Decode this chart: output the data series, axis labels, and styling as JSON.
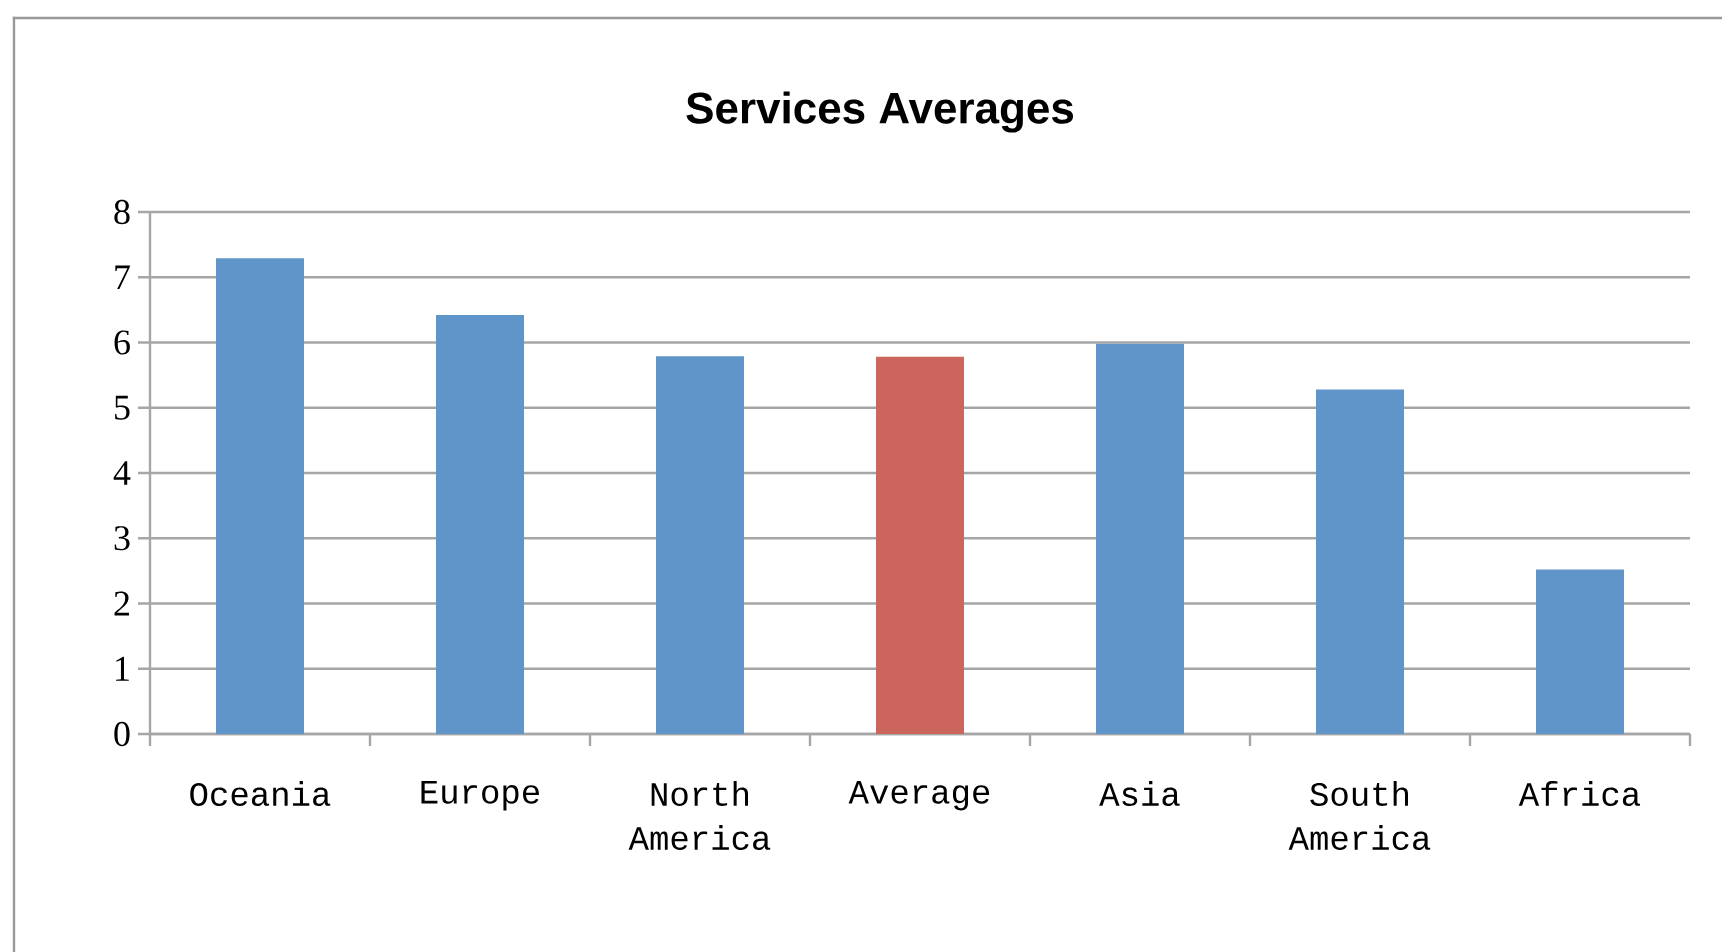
{
  "chart_data": {
    "type": "bar",
    "title": "Services Averages",
    "categories": [
      "Oceania",
      "Europe",
      "North America",
      "Average",
      "Asia",
      "South America",
      "Africa"
    ],
    "values": [
      7.29,
      6.42,
      5.79,
      5.78,
      5.98,
      5.28,
      2.52
    ],
    "colors": [
      "#5f95c9",
      "#5f95c9",
      "#5f95c9",
      "#cb655e",
      "#5f95c9",
      "#5f95c9",
      "#5f95c9"
    ],
    "ylim": [
      0,
      8
    ],
    "yticks": [
      0,
      1,
      2,
      3,
      4,
      5,
      6,
      7,
      8
    ],
    "grid": "y"
  }
}
